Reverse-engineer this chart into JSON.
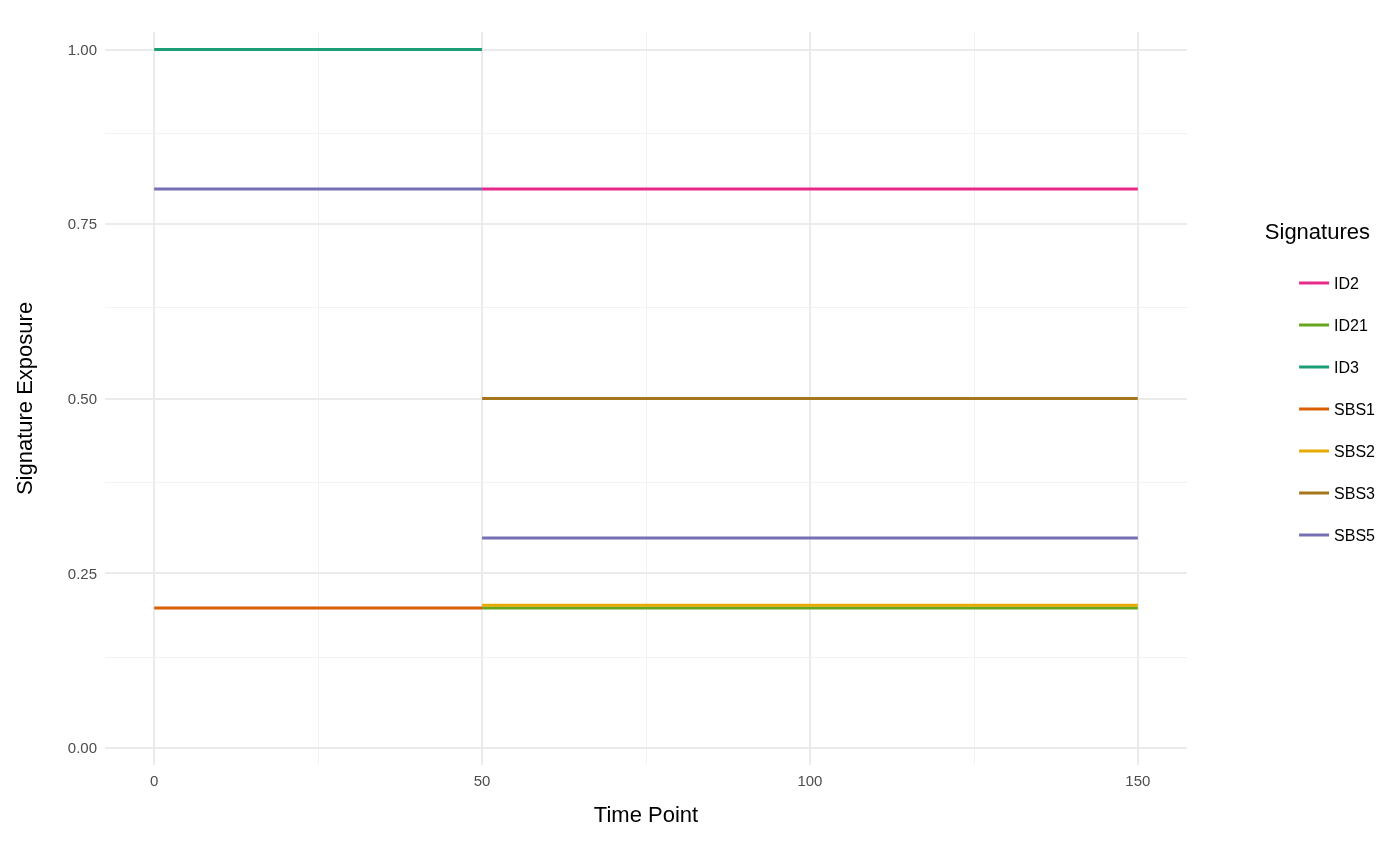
{
  "chart_data": {
    "type": "line",
    "xlabel": "Time Point",
    "ylabel": "Signature Exposure",
    "legend_title": "Signatures",
    "legend": "right",
    "grid": true,
    "marker": "none",
    "line_style": "solid",
    "xlim": [
      -7.5,
      157.5
    ],
    "xticks": [
      0,
      50,
      100,
      150
    ],
    "ylim": [
      -0.025,
      1.025
    ],
    "yticks": [
      {
        "value": 0,
        "label": "0.00"
      },
      {
        "value": 0.25,
        "label": "0.25"
      },
      {
        "value": 0.5,
        "label": "0.50"
      },
      {
        "value": 0.75,
        "label": "0.75"
      },
      {
        "value": 1,
        "label": "1.00"
      }
    ],
    "series": [
      {
        "name": "ID2",
        "color": "#e7298a",
        "x": [
          50,
          150
        ],
        "values": [
          0.8,
          0.8
        ]
      },
      {
        "name": "ID21",
        "color": "#66a61e",
        "x": [
          50,
          150
        ],
        "values": [
          0.2,
          0.2
        ]
      },
      {
        "name": "ID3",
        "color": "#1b9e77",
        "x": [
          0,
          50
        ],
        "values": [
          1,
          1
        ]
      },
      {
        "name": "SBS1",
        "color": "#d95f02",
        "x": [
          0,
          50
        ],
        "values": [
          0.2,
          0.2
        ]
      },
      {
        "name": "SBS2",
        "color": "#e6ab02",
        "x": [
          50,
          150
        ],
        "values": [
          0.204,
          0.204
        ]
      },
      {
        "name": "SBS3",
        "color": "#a6761d",
        "x": [
          50,
          150
        ],
        "values": [
          0.5,
          0.5
        ]
      },
      {
        "name": "SBS5",
        "color": "#7570b3",
        "x": [
          0,
          50
        ],
        "values": [
          0.8,
          0.8
        ]
      },
      {
        "color": "#7570b3",
        "x": [
          50,
          150
        ],
        "values": [
          0.3,
          0.3
        ]
      }
    ]
  }
}
